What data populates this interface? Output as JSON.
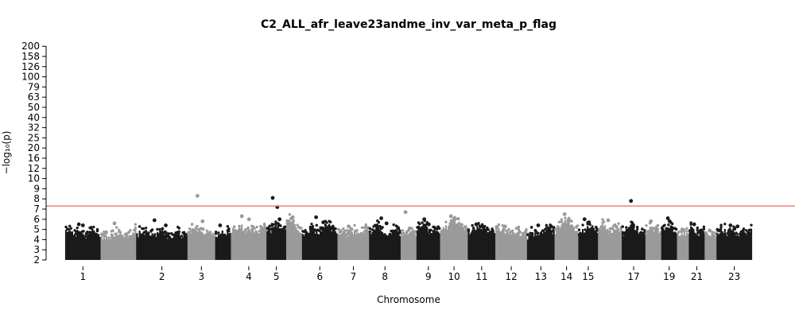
{
  "chart_data": {
    "type": "scatter",
    "subtype": "manhattan",
    "title": "C2_ALL_afr_leave23andme_inv_var_meta_p_flag",
    "xlabel": "Chromosome",
    "ylabel": "−log₁₀(p)",
    "y_scale": "compressed (linear 2–10, then log-like to 200)",
    "y_ticks": [
      2,
      3,
      4,
      5,
      6,
      7,
      8,
      9,
      10,
      12,
      16,
      20,
      25,
      32,
      40,
      50,
      63,
      79,
      100,
      126,
      158,
      200
    ],
    "y_tick_labels": [
      "2",
      "3",
      "4",
      "5",
      "6",
      "7",
      "8",
      "9",
      "10",
      "12",
      "16",
      "20",
      "25",
      "32",
      "40",
      "50",
      "63",
      "79",
      "100",
      "126",
      "158",
      "200"
    ],
    "ylim": [
      2,
      200
    ],
    "threshold": {
      "value": 7.3,
      "color": "#f08080"
    },
    "grid": false,
    "colors": {
      "odd_group": "#1a1a1a",
      "even_group": "#9a9a9a"
    },
    "chromosomes": [
      {
        "label": "1",
        "column_max": [
          4.9,
          5.3,
          4.8,
          4.6,
          4.7,
          4.5,
          5.2,
          4.6,
          4.4
        ],
        "top_hits": [
          5.5,
          5.4
        ]
      },
      {
        "label": "",
        "column_max": [
          4.3,
          4.5,
          4.4,
          4.6,
          4.8,
          4.5,
          4.3,
          4.6,
          5.0
        ],
        "top_hits": [
          5.6
        ]
      },
      {
        "label": "2",
        "column_max": [
          4.6,
          5.0,
          4.8,
          4.9,
          4.7,
          4.8,
          5.2,
          4.6,
          4.4,
          4.7,
          4.8,
          4.5,
          4.9
        ],
        "top_hits": [
          5.9,
          5.4
        ]
      },
      {
        "label": "3",
        "column_max": [
          4.8,
          5.2,
          4.9,
          5.3,
          4.6,
          5.0,
          4.8
        ],
        "top_hits": [
          8.3,
          5.8
        ]
      },
      {
        "label": "",
        "column_max": [
          4.5,
          4.7,
          5.0,
          4.6
        ],
        "top_hits": [
          5.4
        ]
      },
      {
        "label": "4",
        "column_max": [
          5.0,
          5.3,
          5.6,
          5.1,
          4.8,
          5.0,
          4.9,
          5.3,
          5.5
        ],
        "top_hits": [
          6.3,
          6.0
        ]
      },
      {
        "label": "5",
        "column_max": [
          4.9,
          5.1,
          5.4,
          5.2,
          5.0
        ],
        "top_hits": [
          8.1,
          7.2,
          6.0
        ]
      },
      {
        "label": "",
        "column_max": [
          5.8,
          6.1,
          5.5,
          4.9
        ],
        "top_hits": [
          6.2
        ]
      },
      {
        "label": "6",
        "column_max": [
          4.6,
          4.8,
          5.3,
          4.9,
          4.7,
          5.1,
          5.6,
          5.2,
          4.8
        ],
        "top_hits": [
          6.2,
          5.7
        ]
      },
      {
        "label": "7",
        "column_max": [
          4.7,
          4.9,
          4.6,
          5.1,
          4.8,
          4.6,
          5.0,
          4.9
        ],
        "top_hits": [
          5.3
        ]
      },
      {
        "label": "8",
        "column_max": [
          4.9,
          5.4,
          5.6,
          5.0,
          4.7,
          4.8,
          5.0,
          4.8
        ],
        "top_hits": [
          6.1,
          5.6
        ]
      },
      {
        "label": "",
        "column_max": [
          4.6,
          4.9,
          5.2,
          4.7
        ],
        "top_hits": [
          6.7,
          5.1
        ]
      },
      {
        "label": "9",
        "column_max": [
          5.2,
          5.8,
          5.3,
          4.9,
          5.4,
          5.0
        ],
        "top_hits": [
          6.0,
          5.5
        ]
      },
      {
        "label": "10",
        "column_max": [
          5.0,
          5.3,
          5.6,
          5.9,
          6.1,
          5.4,
          5.0
        ],
        "top_hits": [
          6.3,
          5.8
        ]
      },
      {
        "label": "11",
        "column_max": [
          4.8,
          5.1,
          5.4,
          5.0,
          4.9,
          5.2,
          4.8
        ],
        "top_hits": [
          5.5,
          5.2
        ]
      },
      {
        "label": "12",
        "column_max": [
          4.9,
          5.2,
          5.0,
          4.8,
          5.1,
          4.9,
          4.7,
          4.8
        ],
        "top_hits": [
          5.3
        ]
      },
      {
        "label": "13",
        "column_max": [
          4.5,
          4.7,
          4.6,
          4.8,
          5.2,
          5.3,
          4.9
        ],
        "top_hits": [
          5.4
        ]
      },
      {
        "label": "14",
        "column_max": [
          5.0,
          5.4,
          5.9,
          6.0,
          5.3,
          5.0
        ],
        "top_hits": [
          6.5,
          5.9
        ]
      },
      {
        "label": "15",
        "column_max": [
          4.8,
          5.0,
          5.3,
          5.6,
          5.1
        ],
        "top_hits": [
          6.0,
          5.7
        ]
      },
      {
        "label": "",
        "column_max": [
          5.2,
          5.7,
          5.0,
          4.8,
          5.5,
          4.9
        ],
        "top_hits": [
          5.9
        ]
      },
      {
        "label": "17",
        "column_max": [
          4.8,
          5.0,
          5.3,
          5.1,
          4.9,
          4.7
        ],
        "top_hits": [
          7.8,
          5.4
        ]
      },
      {
        "label": "",
        "column_max": [
          5.0,
          5.4,
          5.2,
          4.9
        ],
        "top_hits": [
          5.8
        ]
      },
      {
        "label": "19",
        "column_max": [
          5.1,
          5.4,
          5.3,
          5.0
        ],
        "top_hits": [
          6.1,
          5.8
        ]
      },
      {
        "label": "",
        "column_max": [
          4.6,
          4.9,
          4.7
        ],
        "top_hits": [
          5.0
        ]
      },
      {
        "label": "21",
        "column_max": [
          5.3,
          5.0,
          4.7,
          5.1
        ],
        "top_hits": [
          5.5
        ]
      },
      {
        "label": "",
        "column_max": [
          4.6,
          4.8,
          4.6
        ],
        "top_hits": [
          4.9
        ]
      },
      {
        "label": "23",
        "column_max": [
          4.8,
          5.2,
          4.9,
          4.7,
          4.8,
          4.6,
          5.0,
          4.8,
          5.3
        ],
        "top_hits": [
          5.4,
          5.3
        ]
      }
    ]
  }
}
